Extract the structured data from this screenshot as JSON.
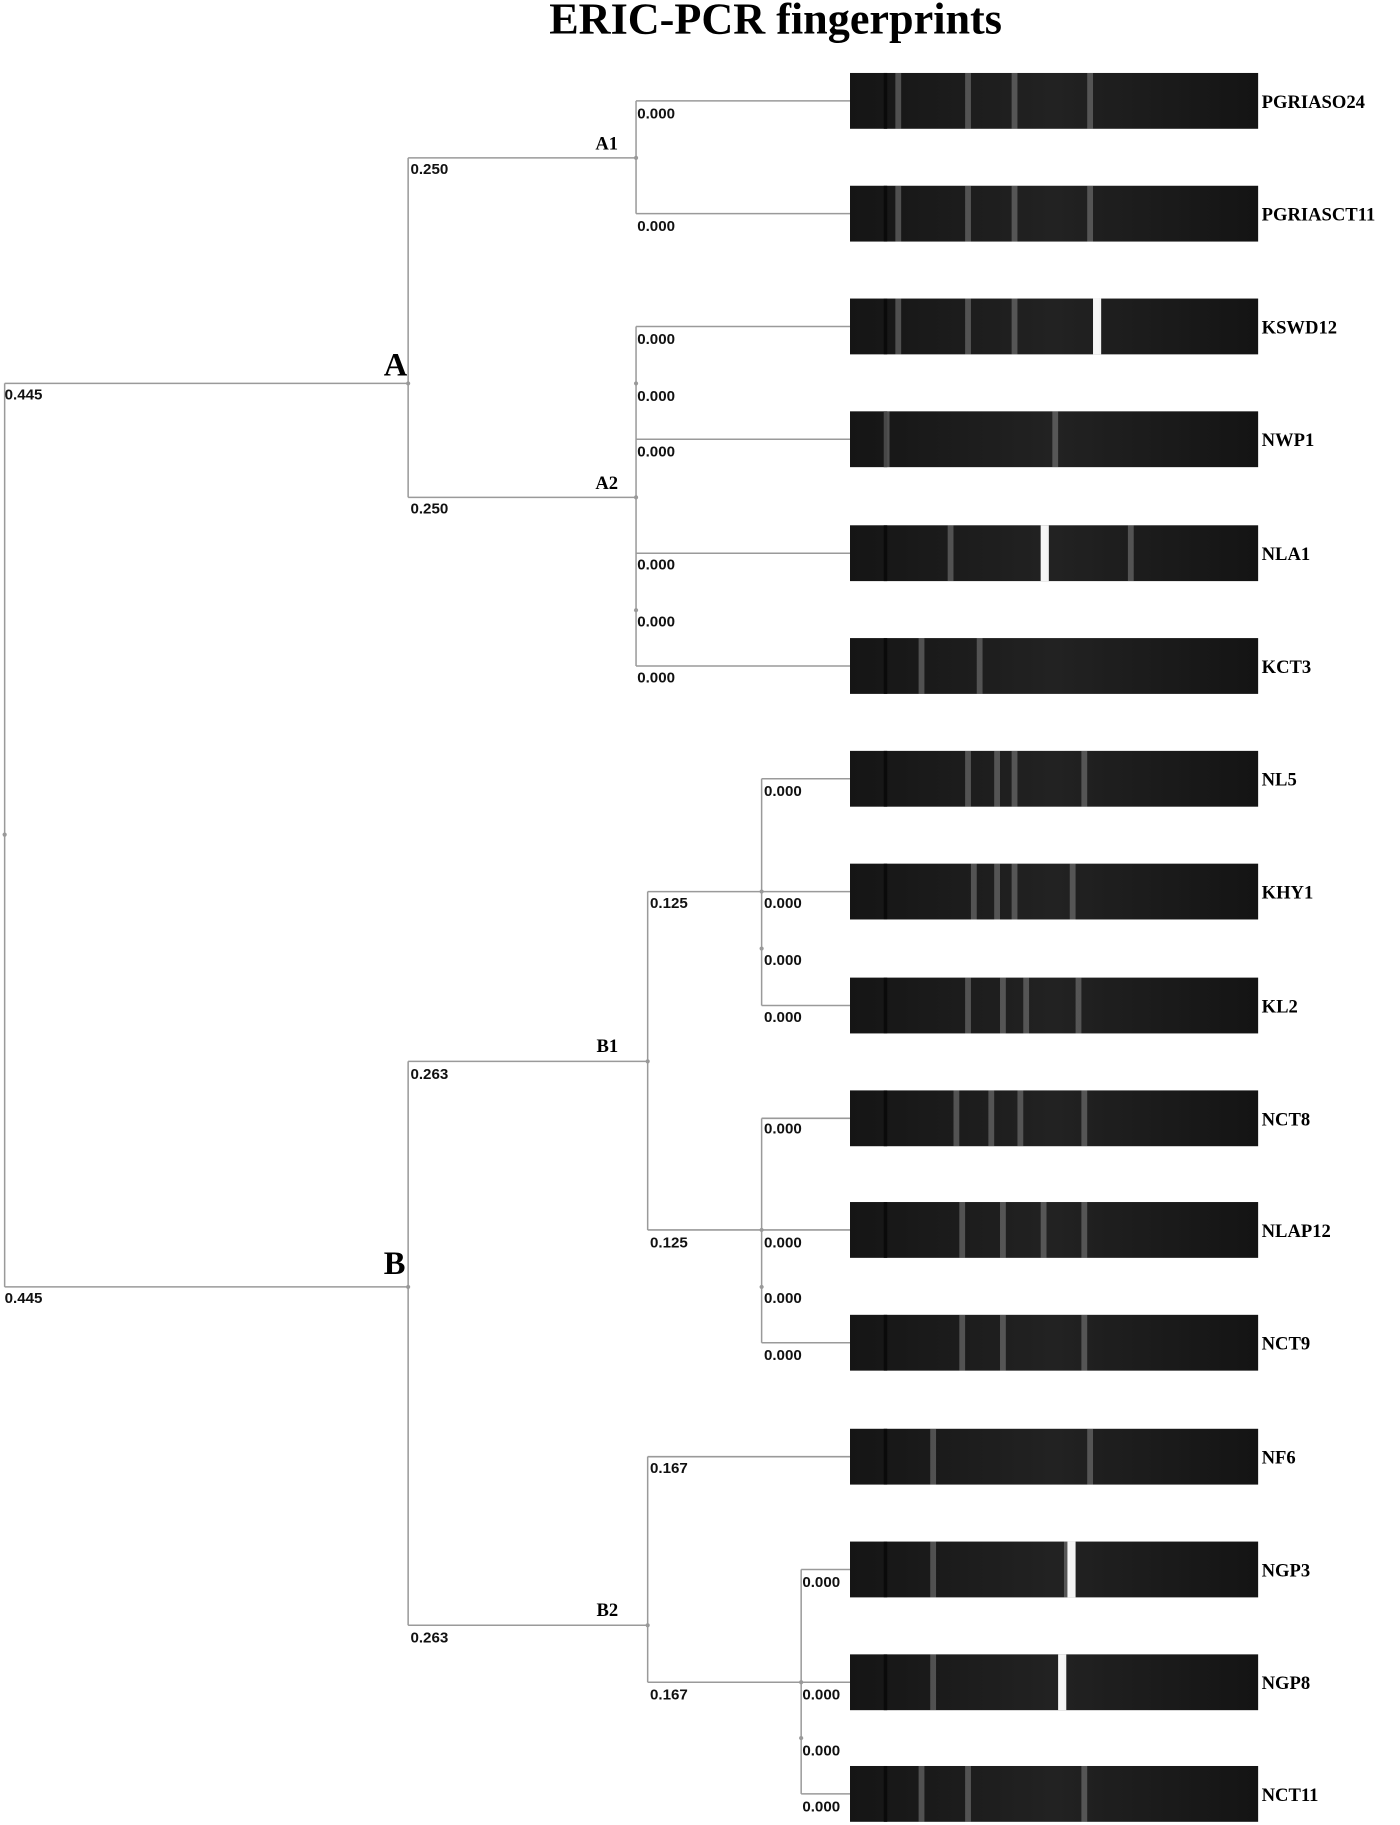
{
  "title": "ERIC-PCR fingerprints",
  "clusters": [
    "A",
    "B",
    "A1",
    "A2",
    "B1",
    "B2"
  ],
  "branch_lengths": [
    "0.445",
    "0.445",
    "0.250",
    "0.250",
    "0.000",
    "0.000",
    "0.000",
    "0.000",
    "0.000",
    "0.000",
    "0.000",
    "0.000",
    "0.263",
    "0.263",
    "0.125",
    "0.125",
    "0.000",
    "0.000",
    "0.000",
    "0.000",
    "0.000",
    "0.000",
    "0.000",
    "0.000",
    "0.167",
    "0.167",
    "0.000",
    "0.000",
    "0.000",
    "0.000"
  ],
  "leaves": [
    "PGRIASO24",
    "PGRIASCT11",
    "KSWD12",
    "NWP1",
    "NLA1",
    "KCT3",
    "NL5",
    "KHY1",
    "KL2",
    "NCT8",
    "NLAP12",
    "NCT9",
    "NF6",
    "NGP3",
    "NGP8",
    "NCT11"
  ]
}
